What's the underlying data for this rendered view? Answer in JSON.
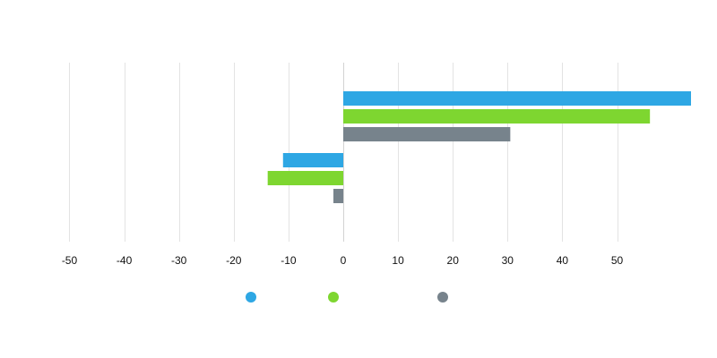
{
  "chart_data": {
    "type": "bar",
    "orientation": "horizontal",
    "categories": [
      "",
      ""
    ],
    "series": [
      {
        "name": "",
        "color": "#2ea7e4",
        "values": [
          63.5,
          -11
        ]
      },
      {
        "name": "",
        "color": "#7ed630",
        "values": [
          56,
          -13.8
        ]
      },
      {
        "name": "",
        "color": "#77838c",
        "values": [
          30.5,
          -1.8
        ]
      }
    ],
    "x_ticks": [
      -50,
      -40,
      -30,
      -20,
      -10,
      0,
      10,
      20,
      30,
      40,
      50
    ],
    "x_tick_labels": [
      "-50",
      "-40",
      "-30",
      "-20",
      "-10",
      "0",
      "10",
      "20",
      "30",
      "40",
      "50"
    ],
    "xlim": [
      -50,
      63.5
    ],
    "title": "",
    "xlabel": "",
    "ylabel": "",
    "grid": true,
    "legend_position": "bottom"
  }
}
